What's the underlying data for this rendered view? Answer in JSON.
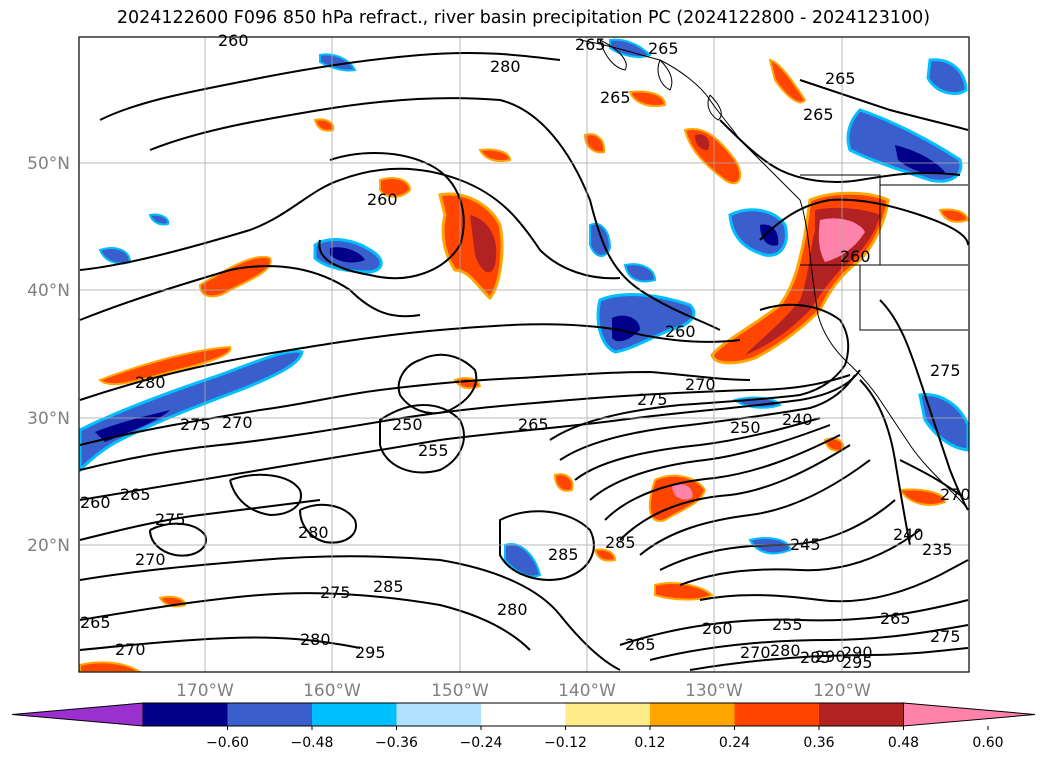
{
  "title": "2024122600 F096 850 hPa refract., river basin precipitation PC (2024122800 - 2024123100)",
  "axes": {
    "lat_labels": [
      "50°N",
      "40°N",
      "30°N",
      "20°N"
    ],
    "lon_labels": [
      "170°W",
      "160°W",
      "150°W",
      "140°W",
      "130°W",
      "120°W"
    ]
  },
  "contour_labels": [
    "260",
    "265",
    "280",
    "265",
    "265",
    "265",
    "260",
    "265",
    "260",
    "280",
    "275",
    "270",
    "275",
    "250",
    "255",
    "265",
    "260",
    "270",
    "275",
    "250",
    "240",
    "260",
    "265",
    "275",
    "270",
    "280",
    "285",
    "285",
    "275",
    "285",
    "280",
    "295",
    "280",
    "245",
    "240",
    "235",
    "290",
    "285",
    "280",
    "270",
    "260",
    "265",
    "255",
    "265",
    "290",
    "295",
    "275",
    "265",
    "270",
    "270"
  ],
  "colorbar": {
    "ticks": [
      "−0.60",
      "−0.48",
      "−0.36",
      "−0.24",
      "−0.12",
      "0.12",
      "0.24",
      "0.36",
      "0.48",
      "0.60"
    ],
    "colors": [
      "#9b30d0",
      "#00008b",
      "#3a5fcd",
      "#00bfff",
      "#b0e2ff",
      "#ffffff",
      "#ffec8b",
      "#ffa500",
      "#ff4500",
      "#b22222",
      "#ff82ab"
    ]
  }
}
